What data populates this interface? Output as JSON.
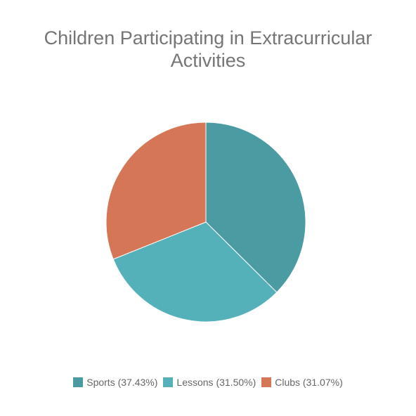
{
  "chart_data": {
    "type": "pie",
    "title_lines": [
      "Children Participating in Extracurricular",
      "Activities"
    ],
    "slices": [
      {
        "label": "Sports",
        "value": 37.43,
        "legend": "Sports (37.43%)",
        "color": "#4a9ba2"
      },
      {
        "label": "Lessons",
        "value": 31.5,
        "legend": "Lessons (31.50%)",
        "color": "#55b1b9"
      },
      {
        "label": "Clubs",
        "value": 31.07,
        "legend": "Clubs (31.07%)",
        "color": "#d57656"
      }
    ],
    "legend_position": "bottom"
  }
}
